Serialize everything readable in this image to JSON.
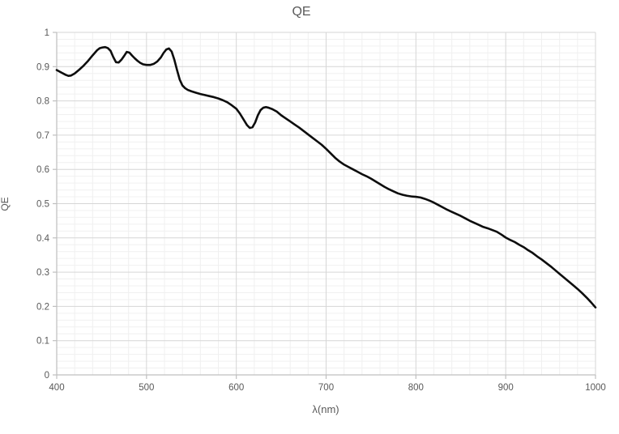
{
  "title": "QE",
  "colors": {
    "background": "#ffffff",
    "text": "#595959",
    "axis_line": "#bfbfbf",
    "major_grid": "#d6d6d6",
    "minor_grid": "#f0f0f0",
    "series": "#0d0d0d"
  },
  "chart_data": {
    "type": "line",
    "title": "QE",
    "xlabel": "λ(nm)",
    "ylabel": "QE",
    "xlim": [
      400,
      1000
    ],
    "ylim": [
      0,
      1
    ],
    "x_major_ticks": [
      400,
      500,
      600,
      700,
      800,
      900,
      1000
    ],
    "y_major_ticks": [
      0,
      0.1,
      0.2,
      0.3,
      0.4,
      0.5,
      0.6,
      0.7,
      0.8,
      0.9,
      1
    ],
    "y_tick_labels": [
      "0",
      "0.1",
      "0.2",
      "0.3",
      "0.4",
      "0.5",
      "0.6",
      "0.7",
      "0.8",
      "0.9",
      "1"
    ],
    "x_minor_step": 20,
    "y_minor_step": 0.02,
    "grid": "major+minor",
    "legend": "none",
    "series": [
      {
        "name": "QE",
        "x": [
          400,
          405,
          410,
          413,
          416,
          420,
          425,
          430,
          435,
          440,
          445,
          448,
          451,
          454,
          457,
          460,
          463,
          466,
          469,
          472,
          475,
          478,
          481,
          484,
          487,
          490,
          493,
          496,
          500,
          504,
          508,
          512,
          516,
          519,
          522,
          525,
          528,
          531,
          534,
          537,
          540,
          543,
          546,
          550,
          555,
          560,
          565,
          570,
          575,
          580,
          585,
          590,
          595,
          600,
          604,
          608,
          612,
          615,
          618,
          621,
          624,
          627,
          630,
          633,
          636,
          640,
          645,
          650,
          655,
          660,
          665,
          670,
          675,
          680,
          685,
          690,
          695,
          700,
          705,
          710,
          715,
          720,
          725,
          730,
          735,
          740,
          745,
          750,
          755,
          760,
          765,
          770,
          775,
          780,
          785,
          790,
          795,
          800,
          805,
          810,
          815,
          820,
          825,
          830,
          835,
          840,
          845,
          850,
          855,
          860,
          865,
          870,
          875,
          880,
          885,
          890,
          895,
          900,
          905,
          910,
          915,
          920,
          925,
          930,
          935,
          940,
          945,
          950,
          955,
          960,
          965,
          970,
          975,
          980,
          985,
          990,
          995,
          1000
        ],
        "y": [
          0.89,
          0.883,
          0.876,
          0.873,
          0.874,
          0.88,
          0.891,
          0.903,
          0.917,
          0.933,
          0.948,
          0.954,
          0.956,
          0.957,
          0.954,
          0.946,
          0.928,
          0.913,
          0.912,
          0.92,
          0.931,
          0.943,
          0.941,
          0.932,
          0.924,
          0.917,
          0.911,
          0.907,
          0.905,
          0.905,
          0.908,
          0.915,
          0.927,
          0.94,
          0.95,
          0.953,
          0.944,
          0.92,
          0.89,
          0.862,
          0.845,
          0.837,
          0.832,
          0.828,
          0.824,
          0.82,
          0.817,
          0.814,
          0.811,
          0.807,
          0.802,
          0.796,
          0.787,
          0.777,
          0.763,
          0.746,
          0.729,
          0.721,
          0.723,
          0.737,
          0.758,
          0.773,
          0.78,
          0.782,
          0.78,
          0.776,
          0.769,
          0.758,
          0.749,
          0.74,
          0.731,
          0.722,
          0.712,
          0.702,
          0.692,
          0.682,
          0.672,
          0.66,
          0.647,
          0.634,
          0.623,
          0.614,
          0.607,
          0.6,
          0.593,
          0.586,
          0.58,
          0.573,
          0.565,
          0.557,
          0.549,
          0.542,
          0.536,
          0.53,
          0.526,
          0.523,
          0.521,
          0.52,
          0.518,
          0.514,
          0.509,
          0.503,
          0.496,
          0.489,
          0.482,
          0.476,
          0.47,
          0.464,
          0.457,
          0.45,
          0.444,
          0.438,
          0.432,
          0.428,
          0.423,
          0.418,
          0.41,
          0.401,
          0.394,
          0.388,
          0.38,
          0.373,
          0.364,
          0.356,
          0.346,
          0.337,
          0.327,
          0.317,
          0.306,
          0.295,
          0.284,
          0.273,
          0.262,
          0.251,
          0.239,
          0.226,
          0.212,
          0.197
        ]
      }
    ]
  }
}
